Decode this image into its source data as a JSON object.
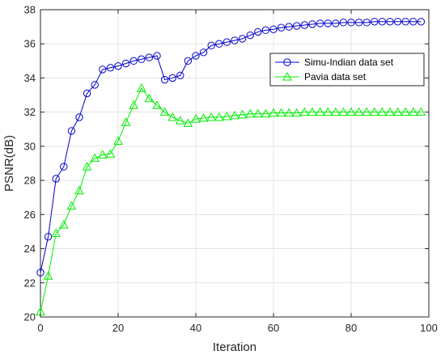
{
  "chart_data": {
    "type": "line",
    "title": "",
    "xlabel": "Iteration",
    "ylabel": "PSNR(dB)",
    "xlim": [
      0,
      100
    ],
    "ylim": [
      20,
      38
    ],
    "x_ticks": [
      0,
      20,
      40,
      60,
      80,
      100
    ],
    "y_ticks": [
      20,
      22,
      24,
      26,
      28,
      30,
      32,
      34,
      36,
      38
    ],
    "grid": true,
    "legend_position": "upper-right",
    "series": [
      {
        "name": "Simu-Indian data set",
        "color": "#0000cc",
        "marker": "circle",
        "x": [
          0,
          2,
          4,
          6,
          8,
          10,
          12,
          14,
          16,
          18,
          20,
          22,
          24,
          26,
          28,
          30,
          32,
          34,
          36,
          38,
          40,
          42,
          44,
          46,
          48,
          50,
          52,
          54,
          56,
          58,
          60,
          62,
          64,
          66,
          68,
          70,
          72,
          74,
          76,
          78,
          80,
          82,
          84,
          86,
          88,
          90,
          92,
          94,
          96,
          98
        ],
        "values": [
          22.6,
          24.7,
          28.1,
          28.8,
          30.9,
          31.7,
          33.1,
          33.6,
          34.5,
          34.6,
          34.7,
          34.85,
          35.0,
          35.1,
          35.2,
          35.3,
          33.9,
          34.0,
          34.15,
          35.0,
          35.3,
          35.5,
          35.9,
          36.0,
          36.1,
          36.2,
          36.3,
          36.5,
          36.7,
          36.8,
          36.85,
          36.95,
          37.0,
          37.05,
          37.1,
          37.15,
          37.2,
          37.2,
          37.2,
          37.25,
          37.25,
          37.25,
          37.25,
          37.3,
          37.3,
          37.3,
          37.3,
          37.3,
          37.3,
          37.3
        ]
      },
      {
        "name": "Pavia data set",
        "color": "#00ee00",
        "marker": "triangle",
        "x": [
          0,
          2,
          4,
          6,
          8,
          10,
          12,
          14,
          16,
          18,
          20,
          22,
          24,
          26,
          28,
          30,
          32,
          34,
          36,
          38,
          40,
          42,
          44,
          46,
          48,
          50,
          52,
          54,
          56,
          58,
          60,
          62,
          64,
          66,
          68,
          70,
          72,
          74,
          76,
          78,
          80,
          82,
          84,
          86,
          88,
          90,
          92,
          94,
          96,
          98
        ],
        "values": [
          20.3,
          22.4,
          24.9,
          25.4,
          26.5,
          27.4,
          28.8,
          29.3,
          29.5,
          29.55,
          30.3,
          31.4,
          32.4,
          33.4,
          32.8,
          32.4,
          32.0,
          31.7,
          31.5,
          31.35,
          31.6,
          31.65,
          31.7,
          31.7,
          31.75,
          31.8,
          31.85,
          31.9,
          31.9,
          31.9,
          31.95,
          31.95,
          31.95,
          31.95,
          32.0,
          32.0,
          32.0,
          32.0,
          32.0,
          32.0,
          32.0,
          32.0,
          32.0,
          32.0,
          32.0,
          32.0,
          32.0,
          32.0,
          32.0,
          32.0
        ]
      }
    ]
  }
}
